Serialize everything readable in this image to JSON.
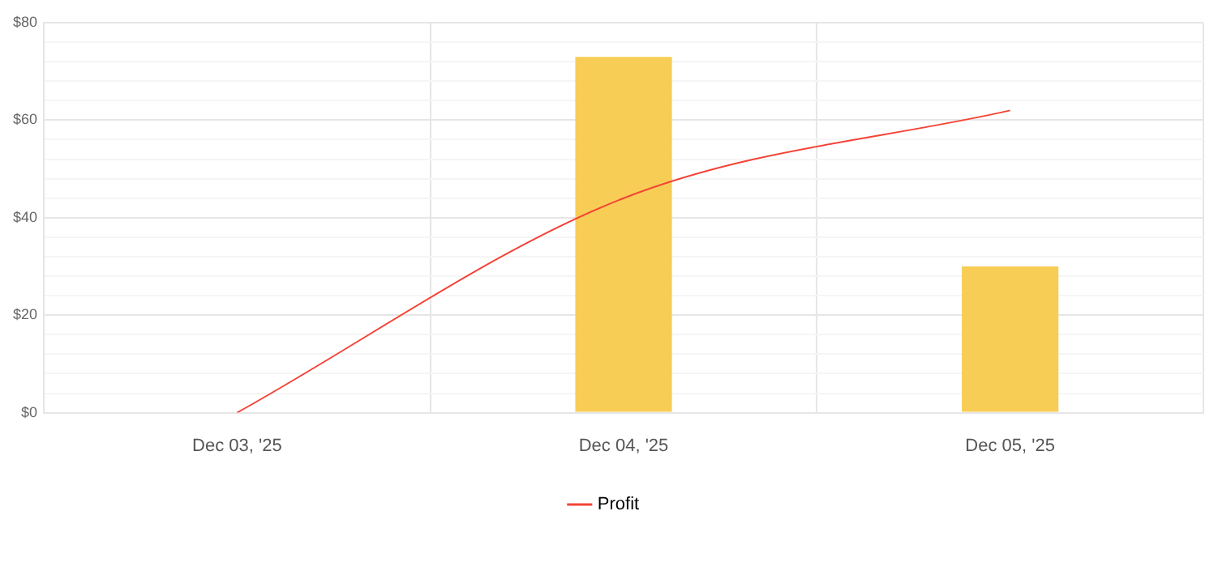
{
  "chart_data": {
    "type": "bar",
    "categories": [
      "Dec 03, '25",
      "Dec 04, '25",
      "Dec 05, '25"
    ],
    "series": [
      {
        "color": "#f7cd55",
        "values": [
          0,
          73,
          30
        ]
      },
      {
        "type": "line",
        "name": "Profit",
        "color": "#f44336",
        "values": [
          0,
          44,
          62
        ]
      }
    ],
    "ylim": [
      0,
      80
    ],
    "yticks": [
      {
        "value": 0,
        "label": "$0"
      },
      {
        "value": 4,
        "label": null
      },
      {
        "value": 8,
        "label": null
      },
      {
        "value": 12,
        "label": null
      },
      {
        "value": 16,
        "label": null
      },
      {
        "value": 20,
        "label": "$20"
      },
      {
        "value": 24,
        "label": null
      },
      {
        "value": 28,
        "label": null
      },
      {
        "value": 32,
        "label": null
      },
      {
        "value": 36,
        "label": null
      },
      {
        "value": 40,
        "label": "$40"
      },
      {
        "value": 44,
        "label": null
      },
      {
        "value": 48,
        "label": null
      },
      {
        "value": 52,
        "label": null
      },
      {
        "value": 56,
        "label": null
      },
      {
        "value": 60,
        "label": "$60"
      },
      {
        "value": 64,
        "label": null
      },
      {
        "value": 68,
        "label": null
      },
      {
        "value": 72,
        "label": null
      },
      {
        "value": 76,
        "label": null
      },
      {
        "value": 80,
        "label": "$80"
      }
    ],
    "grid": true,
    "legend": "bottom",
    "marker": "none",
    "line_style": "solid"
  }
}
